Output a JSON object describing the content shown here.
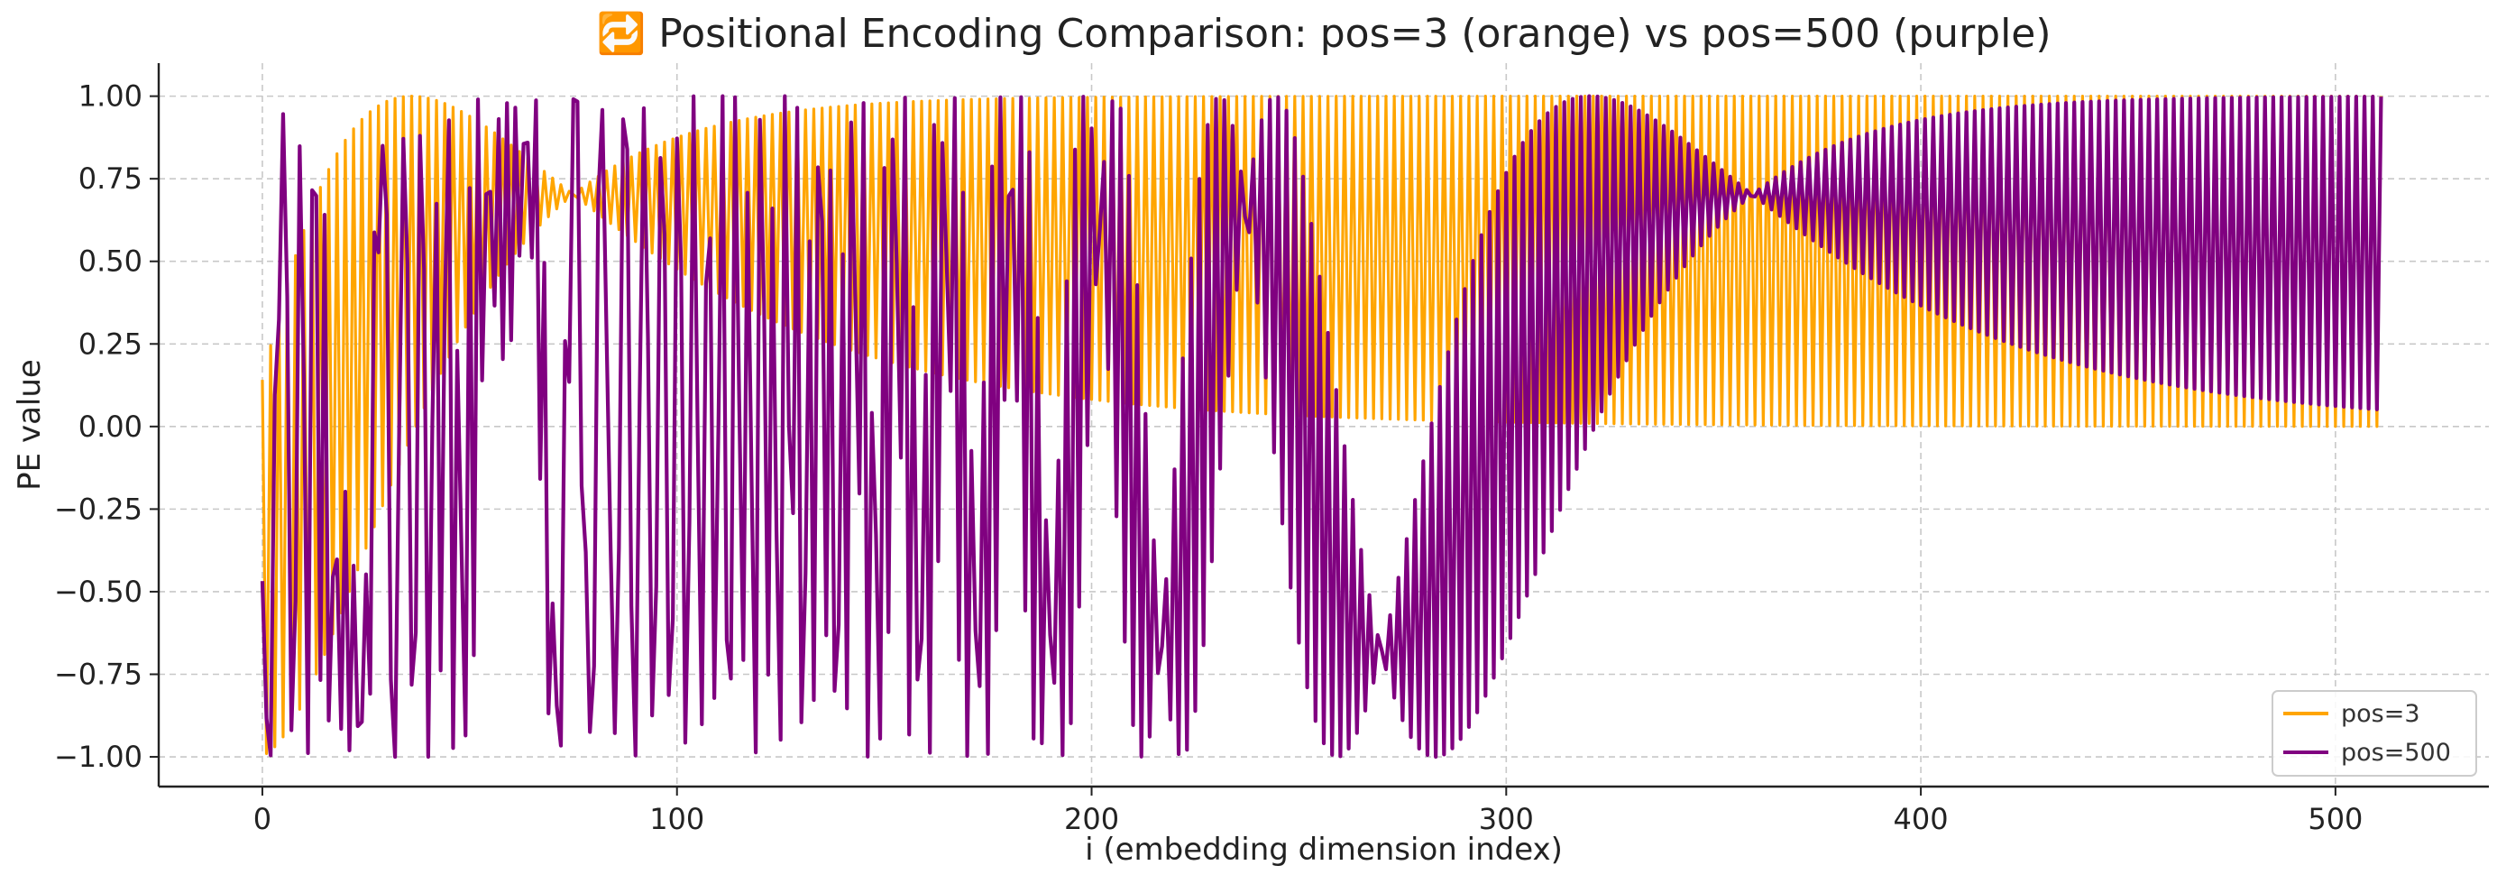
{
  "chart_data": {
    "type": "line",
    "title": "🔁 Positional Encoding Comparison: pos=3 (orange) vs pos=500 (purple)",
    "xlabel": "i (embedding dimension index)",
    "ylabel": "PE value",
    "xlim": [
      -25,
      537
    ],
    "ylim": [
      -1.09,
      1.1
    ],
    "xticks": [
      0,
      100,
      200,
      300,
      400,
      500
    ],
    "xtick_labels": [
      "0",
      "100",
      "200",
      "300",
      "400",
      "500"
    ],
    "yticks": [
      -1.0,
      -0.75,
      -0.5,
      -0.25,
      0.0,
      0.25,
      0.5,
      0.75,
      1.0
    ],
    "ytick_labels": [
      "−1.00",
      "−0.75",
      "−0.50",
      "−0.25",
      "0.00",
      "0.25",
      "0.50",
      "0.75",
      "1.00"
    ],
    "grid": true,
    "legend_position": "bottom-right",
    "series": [
      {
        "name": "pos=3",
        "color": "#FFA500",
        "x_start": 0,
        "x_end": 511,
        "sampled_points": [
          [
            0,
            0.14
          ],
          [
            1,
            -0.99
          ],
          [
            2,
            0.1
          ],
          [
            3,
            -0.95
          ],
          [
            4,
            0.6
          ],
          [
            5,
            -0.86
          ],
          [
            10,
            0.9
          ],
          [
            20,
            1.0
          ],
          [
            40,
            0.74
          ],
          [
            50,
            0.92
          ],
          [
            100,
            0.99
          ],
          [
            130,
            0.01
          ],
          [
            200,
            1.0
          ],
          [
            300,
            0.0
          ],
          [
            511,
            1.0
          ]
        ]
      },
      {
        "name": "pos=500",
        "color": "#800080",
        "x_start": 0,
        "x_end": 511,
        "sampled_points": [
          [
            0,
            -0.47
          ],
          [
            1,
            -0.87
          ],
          [
            2,
            0.18
          ],
          [
            3,
            0.95
          ],
          [
            4,
            -0.53
          ],
          [
            5,
            0.85
          ],
          [
            20,
            -1.0
          ],
          [
            50,
            0.97
          ],
          [
            100,
            -1.0
          ],
          [
            130,
            -1.0
          ],
          [
            145,
            -1.0
          ],
          [
            160,
            0.99
          ],
          [
            165,
            0.55
          ],
          [
            200,
            0.91
          ],
          [
            300,
            0.99
          ],
          [
            511,
            1.0
          ]
        ]
      }
    ]
  }
}
